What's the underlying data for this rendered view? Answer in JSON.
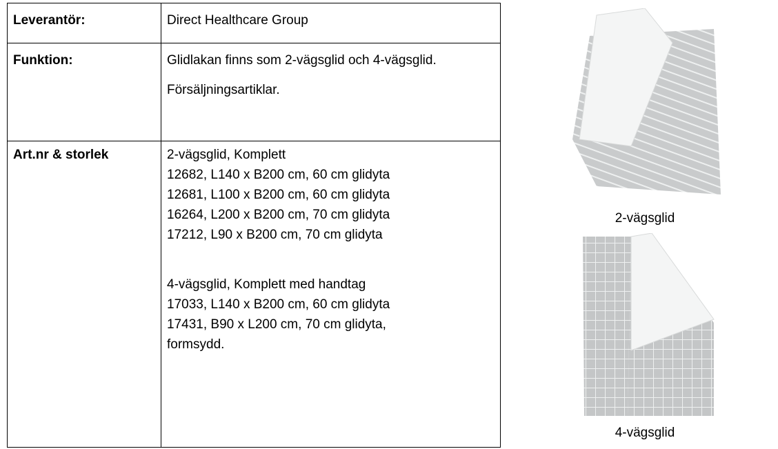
{
  "table": {
    "rows": [
      {
        "label": "Leverantör:",
        "paragraphs": [
          "Direct Healthcare Group"
        ]
      },
      {
        "label": "Funktion:",
        "paragraphs": [
          "Glidlakan finns som 2-vägsglid och 4-vägsglid.",
          "Försäljningsartiklar."
        ]
      },
      {
        "label": "Art.nr & storlek",
        "groups": [
          [
            "2-vägsglid, Komplett",
            "12682, L140 x B200 cm, 60 cm glidyta",
            "12681, L100 x B200 cm, 60 cm glidyta",
            "16264, L200 x B200 cm, 70 cm glidyta",
            "17212, L90 x B200 cm, 70 cm glidyta"
          ],
          [
            "4-vägsglid, Komplett med handtag",
            "17033, L140 x B200 cm, 60 cm glidyta",
            "17431, B90 x L200 cm, 70 cm glidyta,",
            "formsydd."
          ]
        ]
      }
    ]
  },
  "figures": [
    {
      "caption": "2-vägsglid"
    },
    {
      "caption": "4-vägsglid"
    }
  ]
}
